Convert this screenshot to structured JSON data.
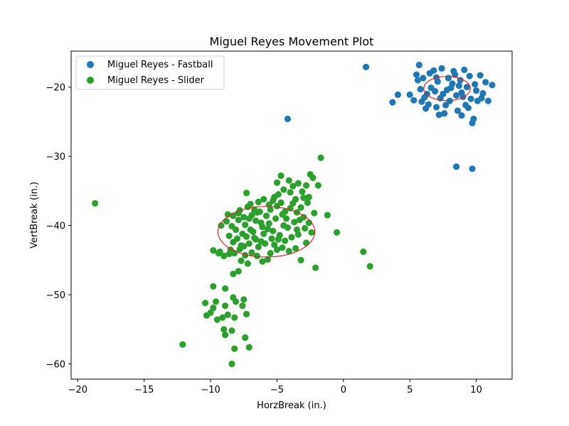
{
  "chart_data": {
    "type": "scatter",
    "title": "Miguel Reyes Movement Plot",
    "xlabel": "HorzBreak (in.)",
    "ylabel": "VertBreak (in.)",
    "xlim": [
      -20.5,
      12.7
    ],
    "ylim": [
      -62.2,
      -14.8
    ],
    "x_ticks": [
      -20,
      -15,
      -10,
      -5,
      0,
      5,
      10
    ],
    "y_ticks": [
      -20,
      -30,
      -40,
      -50,
      -60
    ],
    "x_tick_labels": [
      "−20",
      "−15",
      "−10",
      "−5",
      "0",
      "5",
      "10"
    ],
    "y_tick_labels": [
      "−20",
      "−30",
      "−40",
      "−50",
      "−60"
    ],
    "grid": false,
    "legend_position": "upper-left",
    "series": [
      {
        "name": "Miguel Reyes - Fastball",
        "color": "#1f77b4",
        "points": [
          [
            1.7,
            -17.1
          ],
          [
            -4.2,
            -24.6
          ],
          [
            8.5,
            -31.5
          ],
          [
            9.7,
            -31.8
          ],
          [
            3.7,
            -22.2
          ],
          [
            4.1,
            -21.1
          ],
          [
            5.0,
            -21.1
          ],
          [
            5.3,
            -21.9
          ],
          [
            5.5,
            -18.2
          ],
          [
            5.7,
            -16.8
          ],
          [
            5.9,
            -22.1
          ],
          [
            6.2,
            -23.1
          ],
          [
            6.3,
            -21.0
          ],
          [
            6.5,
            -18.0
          ],
          [
            6.6,
            -20.1
          ],
          [
            6.8,
            -17.6
          ],
          [
            7.0,
            -22.9
          ],
          [
            7.1,
            -19.2
          ],
          [
            7.3,
            -21.6
          ],
          [
            7.4,
            -17.3
          ],
          [
            7.6,
            -23.8
          ],
          [
            7.8,
            -20.4
          ],
          [
            7.9,
            -18.7
          ],
          [
            8.0,
            -22.0
          ],
          [
            8.2,
            -19.5
          ],
          [
            8.3,
            -17.7
          ],
          [
            8.5,
            -21.2
          ],
          [
            8.6,
            -23.4
          ],
          [
            8.8,
            -19.0
          ],
          [
            8.9,
            -20.8
          ],
          [
            9.1,
            -17.5
          ],
          [
            9.2,
            -22.6
          ],
          [
            9.3,
            -20.0
          ],
          [
            9.5,
            -18.4
          ],
          [
            9.6,
            -21.7
          ],
          [
            9.8,
            -24.6
          ],
          [
            9.9,
            -19.6
          ],
          [
            10.1,
            -22.0
          ],
          [
            10.3,
            -18.3
          ],
          [
            10.5,
            -20.9
          ],
          [
            10.7,
            -19.3
          ],
          [
            10.9,
            -22.0
          ],
          [
            11.2,
            -19.7
          ],
          [
            9.7,
            -25.2
          ],
          [
            5.6,
            -19.0
          ],
          [
            6.1,
            -21.5
          ],
          [
            6.9,
            -20.6
          ],
          [
            7.5,
            -21.0
          ],
          [
            8.1,
            -20.1
          ],
          [
            8.7,
            -19.8
          ],
          [
            9.0,
            -21.4
          ],
          [
            7.2,
            -24.0
          ],
          [
            6.0,
            -18.7
          ],
          [
            8.4,
            -18.2
          ],
          [
            9.4,
            -23.0
          ],
          [
            10.0,
            -20.5
          ],
          [
            7.7,
            -22.6
          ],
          [
            6.4,
            -22.5
          ],
          [
            5.8,
            -20.3
          ],
          [
            8.9,
            -24.1
          ],
          [
            7.0,
            -18.6
          ],
          [
            10.4,
            -21.6
          ]
        ],
        "ellipse": {
          "center": [
            7.8,
            -20.2
          ],
          "width": 3.5,
          "height": 3.5,
          "color": "#d62728"
        }
      },
      {
        "name": "Miguel Reyes - Slider",
        "color": "#2ca02c",
        "points": [
          [
            -18.7,
            -36.8
          ],
          [
            -12.1,
            -57.2
          ],
          [
            1.5,
            -43.8
          ],
          [
            2.0,
            -45.9
          ],
          [
            -1.7,
            -30.2
          ],
          [
            -0.5,
            -41.0
          ],
          [
            -2.1,
            -46.1
          ],
          [
            -1.2,
            -38.5
          ],
          [
            -8.4,
            -60.0
          ],
          [
            -7.1,
            -57.6
          ],
          [
            -8.2,
            -57.8
          ],
          [
            -7.4,
            -56.2
          ],
          [
            -8.9,
            -55.8
          ],
          [
            -9.0,
            -55.0
          ],
          [
            -8.4,
            -55.2
          ],
          [
            -10.3,
            -53.0
          ],
          [
            -10.0,
            -52.6
          ],
          [
            -9.5,
            -53.6
          ],
          [
            -9.1,
            -53.3
          ],
          [
            -8.7,
            -52.9
          ],
          [
            -8.2,
            -53.3
          ],
          [
            -7.3,
            -52.8
          ],
          [
            -9.8,
            -51.9
          ],
          [
            -8.9,
            -51.6
          ],
          [
            -8.1,
            -51.0
          ],
          [
            -7.6,
            -51.6
          ],
          [
            -10.4,
            -51.2
          ],
          [
            -9.6,
            -51.0
          ],
          [
            -8.3,
            -50.4
          ],
          [
            -7.5,
            -50.7
          ],
          [
            -8.9,
            -49.1
          ],
          [
            -9.8,
            -48.8
          ],
          [
            -8.3,
            -47.0
          ],
          [
            -7.9,
            -46.6
          ],
          [
            -7.7,
            -45.1
          ],
          [
            -7.2,
            -45.5
          ],
          [
            -9.8,
            -43.6
          ],
          [
            -9.4,
            -44.0
          ],
          [
            -9.0,
            -44.4
          ],
          [
            -8.6,
            -44.1
          ],
          [
            -9.2,
            -40.0
          ],
          [
            -8.8,
            -39.4
          ],
          [
            -8.3,
            -38.6
          ],
          [
            -7.9,
            -38.2
          ],
          [
            -7.5,
            -38.8
          ],
          [
            -7.2,
            -37.3
          ],
          [
            -7.3,
            -35.3
          ],
          [
            -7.0,
            -36.9
          ],
          [
            -6.7,
            -37.7
          ],
          [
            -6.4,
            -36.6
          ],
          [
            -6.0,
            -36.2
          ],
          [
            -5.6,
            -37.0
          ],
          [
            -5.3,
            -36.4
          ],
          [
            -4.9,
            -35.5
          ],
          [
            -4.5,
            -34.8
          ],
          [
            -4.1,
            -33.5
          ],
          [
            -3.8,
            -34.3
          ],
          [
            -3.4,
            -33.9
          ],
          [
            -3.1,
            -35.1
          ],
          [
            -2.8,
            -34.2
          ],
          [
            -2.5,
            -32.6
          ],
          [
            -2.3,
            -33.1
          ],
          [
            -4.7,
            -32.8
          ],
          [
            -5.0,
            -33.8
          ],
          [
            -3.6,
            -36.2
          ],
          [
            -2.6,
            -35.9
          ],
          [
            -1.9,
            -34.2
          ],
          [
            -2.2,
            -38.2
          ],
          [
            -2.4,
            -41.0
          ],
          [
            -3.2,
            -45.0
          ],
          [
            -4.1,
            -43.7
          ],
          [
            -4.6,
            -43.2
          ],
          [
            -5.2,
            -42.8
          ],
          [
            -5.7,
            -44.9
          ],
          [
            -6.2,
            -42.3
          ],
          [
            -6.7,
            -41.8
          ],
          [
            -7.1,
            -42.6
          ],
          [
            -7.6,
            -41.2
          ],
          [
            -8.1,
            -40.6
          ],
          [
            -8.6,
            -41.5
          ],
          [
            -8.3,
            -42.4
          ],
          [
            -7.8,
            -43.4
          ],
          [
            -7.4,
            -44.3
          ],
          [
            -6.9,
            -43.9
          ],
          [
            -6.5,
            -44.4
          ],
          [
            -6.1,
            -45.2
          ],
          [
            -5.5,
            -44.0
          ],
          [
            -5.0,
            -43.5
          ],
          [
            -4.4,
            -42.2
          ],
          [
            -3.9,
            -41.7
          ],
          [
            -3.4,
            -41.3
          ],
          [
            -2.9,
            -40.4
          ],
          [
            -2.6,
            -39.6
          ],
          [
            -3.0,
            -38.8
          ],
          [
            -3.5,
            -38.1
          ],
          [
            -4.0,
            -37.5
          ],
          [
            -4.6,
            -38.4
          ],
          [
            -5.1,
            -39.0
          ],
          [
            -5.6,
            -39.7
          ],
          [
            -6.1,
            -40.2
          ],
          [
            -6.6,
            -39.3
          ],
          [
            -7.0,
            -40.6
          ],
          [
            -7.4,
            -39.9
          ],
          [
            -7.9,
            -39.2
          ],
          [
            -8.4,
            -40.1
          ],
          [
            -6.3,
            -38.0
          ],
          [
            -5.8,
            -38.6
          ],
          [
            -5.3,
            -40.8
          ],
          [
            -4.8,
            -41.4
          ],
          [
            -4.2,
            -40.3
          ],
          [
            -3.7,
            -39.5
          ],
          [
            -3.2,
            -37.4
          ],
          [
            -2.7,
            -36.7
          ],
          [
            -3.8,
            -36.8
          ],
          [
            -4.3,
            -39.0
          ],
          [
            -5.4,
            -41.9
          ],
          [
            -6.0,
            -41.2
          ],
          [
            -6.8,
            -40.9
          ],
          [
            -7.3,
            -41.6
          ],
          [
            -8.0,
            -41.9
          ],
          [
            -7.7,
            -42.9
          ],
          [
            -6.4,
            -43.1
          ],
          [
            -5.9,
            -42.6
          ],
          [
            -4.9,
            -42.0
          ],
          [
            -4.5,
            -40.0
          ],
          [
            -3.6,
            -43.3
          ],
          [
            -5.5,
            -37.7
          ],
          [
            -6.5,
            -38.1
          ],
          [
            -4.7,
            -36.7
          ],
          [
            -3.3,
            -39.2
          ],
          [
            -2.8,
            -42.5
          ],
          [
            -7.8,
            -37.8
          ],
          [
            -8.7,
            -38.4
          ],
          [
            -6.9,
            -38.5
          ],
          [
            -5.2,
            -35.9
          ],
          [
            -4.0,
            -35.2
          ],
          [
            -3.0,
            -36.0
          ],
          [
            -6.2,
            -39.6
          ],
          [
            -5.7,
            -40.5
          ],
          [
            -7.1,
            -39.0
          ],
          [
            -8.5,
            -43.5
          ],
          [
            -9.3,
            -43.8
          ],
          [
            -5.0,
            -37.2
          ],
          [
            -4.4,
            -38.0
          ],
          [
            -3.5,
            -40.6
          ],
          [
            -6.6,
            -42.0
          ],
          [
            -7.5,
            -43.0
          ],
          [
            -8.2,
            -44.0
          ]
        ],
        "ellipse": {
          "center": [
            -5.8,
            -40.9
          ],
          "width": 7.3,
          "height": 7.3,
          "color": "#d62728"
        }
      }
    ]
  }
}
